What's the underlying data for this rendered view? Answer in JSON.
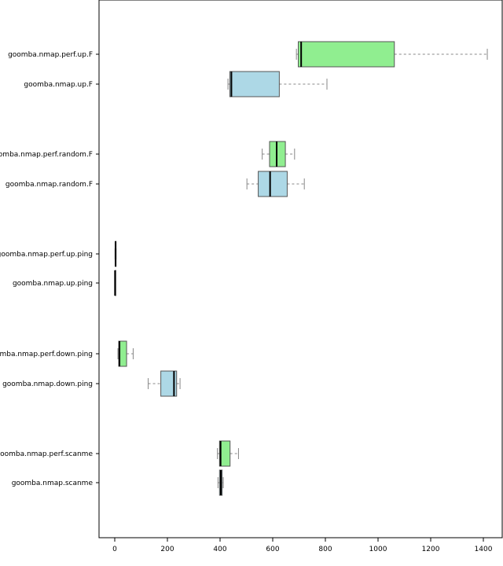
{
  "chart_data": {
    "type": "boxplot",
    "orientation": "horizontal",
    "xlim": [
      -60,
      1460
    ],
    "x_ticks": [
      0,
      200,
      400,
      600,
      800,
      1000,
      1200,
      1400
    ],
    "x_tick_labels": [
      "0",
      "200",
      "400",
      "600",
      "800",
      "1000",
      "1200",
      "1400"
    ],
    "colors": {
      "perf": "#90ee90",
      "base": "#add8e6",
      "outline": "#555555",
      "median": "#000000",
      "whisker": "#888888"
    },
    "boxes": [
      {
        "label": "goomba.nmap.perf.up.F",
        "group": "perf",
        "min": 690,
        "q1": 697,
        "median": 708,
        "q3": 1062,
        "max": 1415
      },
      {
        "label": "goomba.nmap.up.F",
        "group": "base",
        "min": 430,
        "q1": 437,
        "median": 443,
        "q3": 625,
        "max": 806
      },
      {
        "label": "goomba.nmap.perf.random.F",
        "group": "perf",
        "min": 560,
        "q1": 588,
        "median": 615,
        "q3": 648,
        "max": 683
      },
      {
        "label": "goomba.nmap.random.F",
        "group": "base",
        "min": 502,
        "q1": 545,
        "median": 590,
        "q3": 655,
        "max": 720
      },
      {
        "label": "goomba.nmap.perf.up.ping",
        "group": "perf",
        "min": 1,
        "q1": 2,
        "median": 3,
        "q3": 4,
        "max": 5
      },
      {
        "label": "goomba.nmap.up.ping",
        "group": "base",
        "min": 0,
        "q1": 1,
        "median": 1,
        "q3": 2,
        "max": 2
      },
      {
        "label": "goomba.nmap.perf.down.ping",
        "group": "perf",
        "min": 12,
        "q1": 15,
        "median": 18,
        "q3": 45,
        "max": 70
      },
      {
        "label": "goomba.nmap.down.ping",
        "group": "base",
        "min": 127,
        "q1": 175,
        "median": 225,
        "q3": 235,
        "max": 248
      },
      {
        "label": "goomba.nmap.perf.scanme",
        "group": "perf",
        "min": 390,
        "q1": 398,
        "median": 402,
        "q3": 438,
        "max": 470
      },
      {
        "label": "goomba.nmap.scanme",
        "group": "base",
        "min": 392,
        "q1": 398,
        "median": 403,
        "q3": 408,
        "max": 412
      }
    ]
  }
}
